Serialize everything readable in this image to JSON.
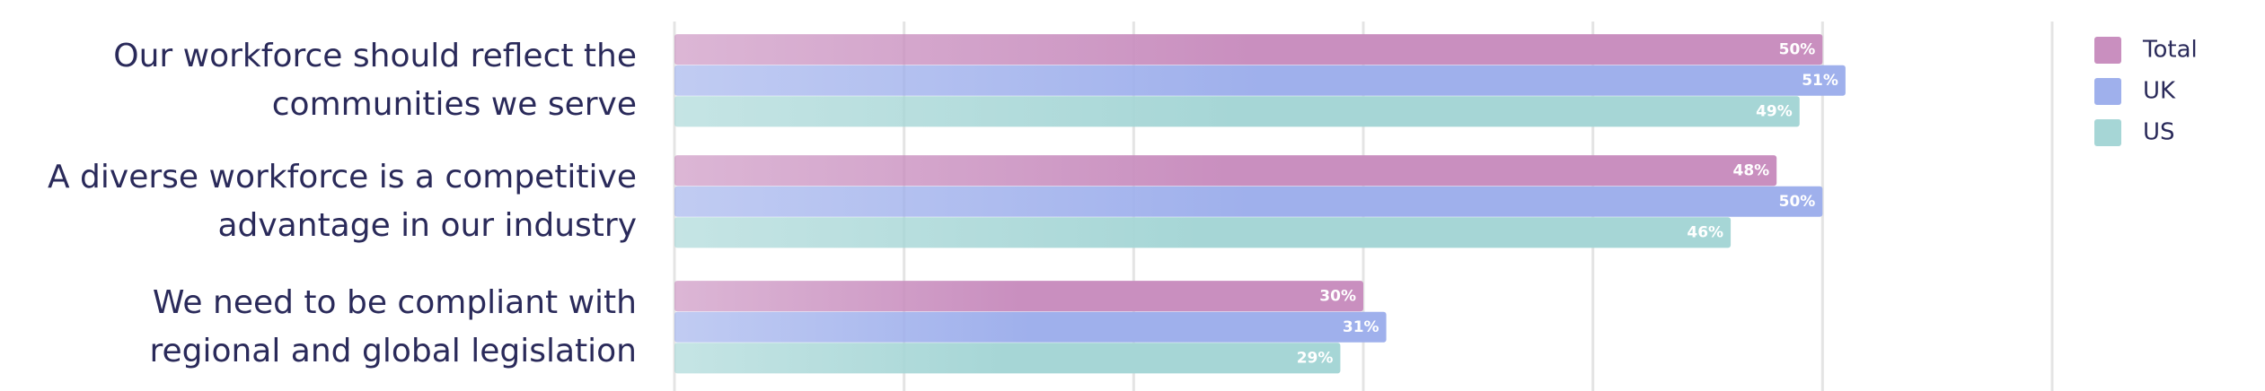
{
  "chart_data": {
    "type": "hbar",
    "categories": [
      "Our workforce should reflect the\ncommunities we serve",
      "A diverse workforce is a competitive\nadvantage in our industry",
      "We need to be compliant with\nregional and global legislation"
    ],
    "series": [
      {
        "name": "Total",
        "color": "#c98fbf",
        "values": [
          50,
          48,
          30
        ],
        "value_labels": [
          "50%",
          "48%",
          "30%"
        ]
      },
      {
        "name": "UK",
        "color": "#9fb0ec",
        "values": [
          51,
          50,
          31
        ],
        "value_labels": [
          "51%",
          "50%",
          "31%"
        ]
      },
      {
        "name": "US",
        "color": "#a6d6d6",
        "values": [
          49,
          46,
          29
        ],
        "value_labels": [
          "49%",
          "46%",
          "29%"
        ]
      }
    ],
    "xlim": [
      0,
      60
    ],
    "xticks": [
      0,
      10,
      20,
      30,
      40,
      50,
      60
    ],
    "grid": true,
    "legend": "top-right"
  }
}
